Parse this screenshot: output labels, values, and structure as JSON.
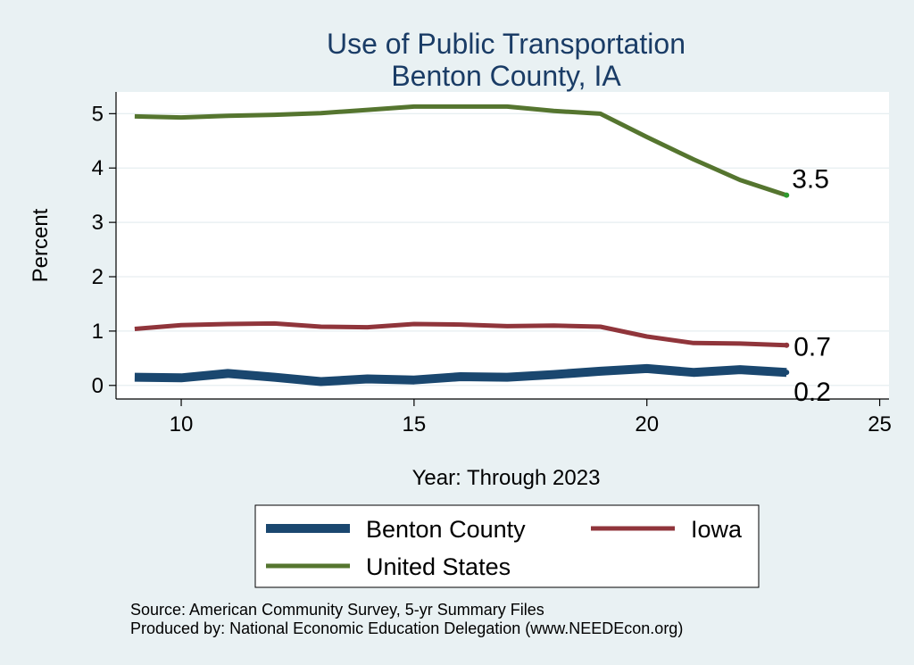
{
  "chart_data": {
    "type": "line",
    "title": "Use of Public Transportation",
    "subtitle": "Benton County, IA",
    "xlabel": "Year: Through 2023",
    "ylabel": "Percent",
    "xlim": [
      8.6,
      25.2
    ],
    "ylim": [
      -0.25,
      5.4
    ],
    "xticks": [
      10,
      15,
      20,
      25
    ],
    "yticks": [
      0,
      1,
      2,
      3,
      4,
      5
    ],
    "grid": true,
    "legend_position": "bottom",
    "x": [
      9,
      10,
      11,
      12,
      13,
      14,
      15,
      16,
      17,
      18,
      19,
      20,
      21,
      22,
      23
    ],
    "series": [
      {
        "name": "Benton County",
        "color": "#1a476f",
        "values": [
          0.15,
          0.14,
          0.22,
          0.15,
          0.07,
          0.12,
          0.1,
          0.16,
          0.15,
          0.2,
          0.26,
          0.31,
          0.24,
          0.29,
          0.24
        ],
        "end_label": "0.2"
      },
      {
        "name": "Iowa",
        "color": "#90353b",
        "values": [
          1.04,
          1.11,
          1.13,
          1.14,
          1.08,
          1.07,
          1.13,
          1.12,
          1.09,
          1.1,
          1.08,
          0.9,
          0.78,
          0.77,
          0.74
        ],
        "end_label": "0.7"
      },
      {
        "name": "United States",
        "color": "#55752f",
        "values": [
          4.95,
          4.93,
          4.96,
          4.98,
          5.01,
          5.07,
          5.13,
          5.13,
          5.13,
          5.05,
          5.0,
          4.57,
          4.16,
          3.78,
          3.5
        ],
        "end_label": "3.5"
      }
    ],
    "notes": [
      "Source: American Community Survey, 5-yr Summary Files",
      "Produced by: National Economic Education Delegation (www.NEEDEcon.org)"
    ]
  }
}
